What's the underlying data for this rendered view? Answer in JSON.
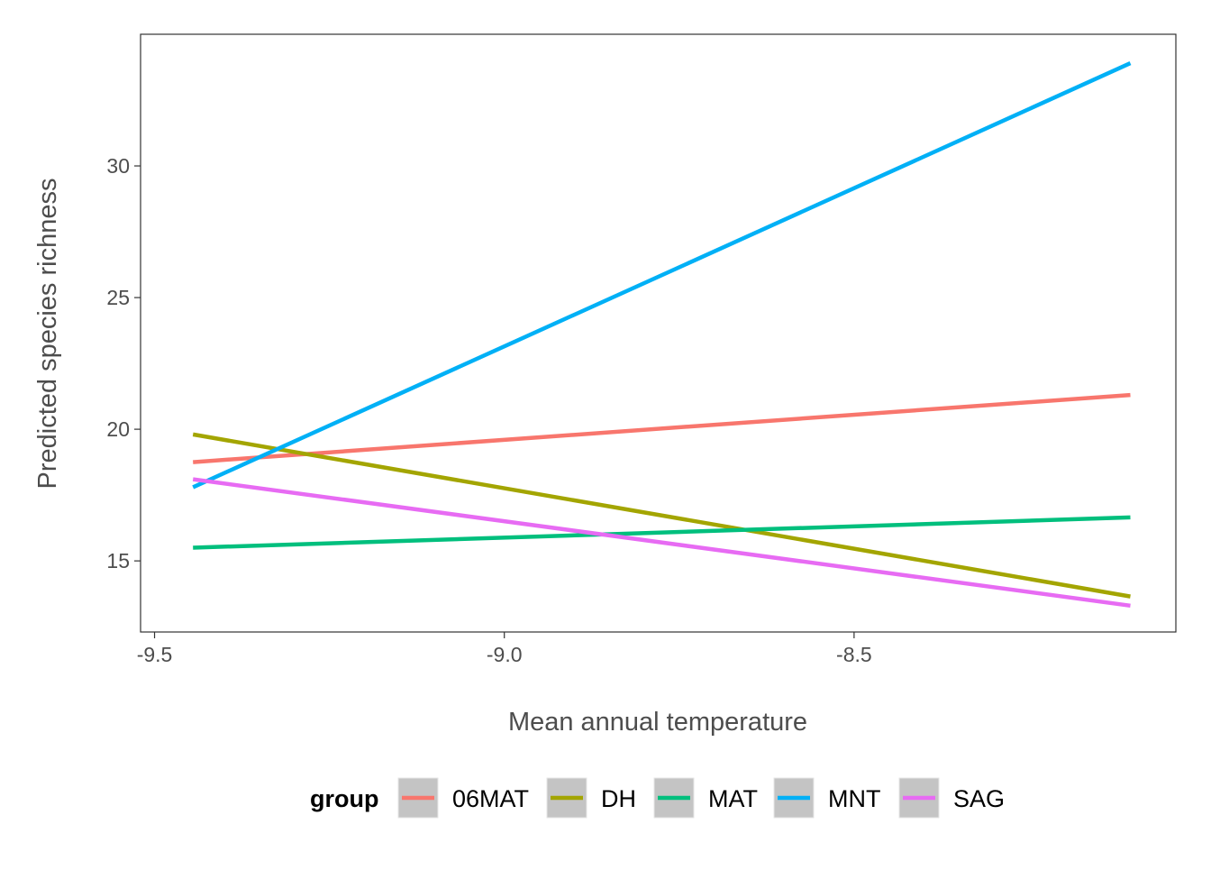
{
  "chart_data": {
    "type": "line",
    "title": "",
    "xlabel": "Mean annual temperature",
    "ylabel": "Predicted species richness",
    "xlim": [
      -9.52,
      -8.04
    ],
    "ylim": [
      12.3,
      35.0
    ],
    "x_ticks": [
      -9.5,
      -9.0,
      -8.5
    ],
    "x_tick_labels": [
      "-9.5",
      "-9.0",
      "-8.5"
    ],
    "y_ticks": [
      15,
      20,
      25,
      30
    ],
    "y_tick_labels": [
      "15",
      "20",
      "25",
      "30"
    ],
    "grid": false,
    "legend_position": "bottom",
    "legend_title": "group",
    "series": [
      {
        "name": "06MAT",
        "color": "#F8766D",
        "x": [
          -9.445,
          -8.105
        ],
        "y": [
          18.75,
          21.3
        ]
      },
      {
        "name": "DH",
        "color": "#A3A500",
        "x": [
          -9.445,
          -8.105
        ],
        "y": [
          19.8,
          13.65
        ]
      },
      {
        "name": "MAT",
        "color": "#00BF7D",
        "x": [
          -9.445,
          -8.105
        ],
        "y": [
          15.5,
          16.65
        ]
      },
      {
        "name": "MNT",
        "color": "#00B0F6",
        "x": [
          -9.445,
          -8.105
        ],
        "y": [
          17.8,
          33.9
        ]
      },
      {
        "name": "SAG",
        "color": "#E76BF3",
        "x": [
          -9.445,
          -8.105
        ],
        "y": [
          18.1,
          13.3
        ]
      }
    ]
  }
}
